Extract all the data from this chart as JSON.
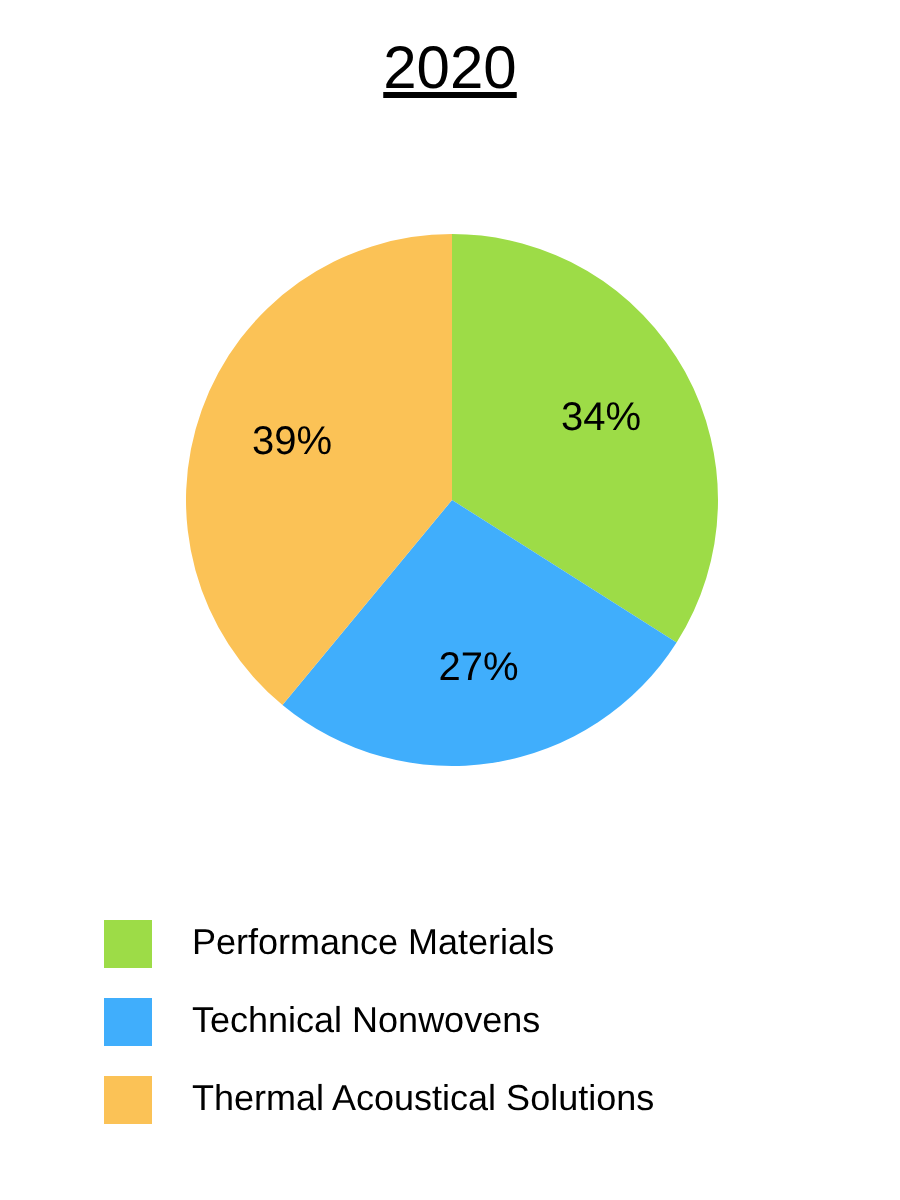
{
  "chart_data": {
    "type": "pie",
    "title": "2020",
    "categories": [
      "Performance Materials",
      "Technical Nonwovens",
      "Thermal Acoustical Solutions"
    ],
    "values": [
      34,
      27,
      39
    ],
    "colors": [
      "#9ddc47",
      "#40aefc",
      "#fbc256"
    ],
    "value_labels": [
      "34%",
      "27%",
      "39%"
    ],
    "legend": "bottom"
  }
}
